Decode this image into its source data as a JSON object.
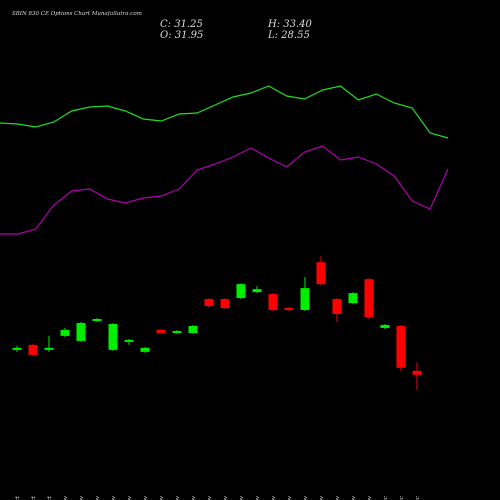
{
  "chart_data": {
    "type": "candlestick",
    "title": "SBIN 830 CE Options Chart MunafaSutra.com",
    "ohlc_labels": [
      "C: 31.25",
      "H: 33.40",
      "O: 31.95",
      "L: 28.55"
    ],
    "categories": [
      "29 Oct",
      "30 Oct",
      "31 Oct",
      "01 Nov",
      "04 Nov",
      "05 Nov",
      "06 Nov",
      "07 Nov",
      "08 Nov",
      "11 Nov",
      "12 Nov",
      "13 Nov",
      "14 Nov",
      "18 Nov",
      "19 Nov",
      "20 Nov",
      "21 Nov",
      "22 Nov",
      "25 Nov",
      "26 Nov",
      "27 Nov",
      "28 Nov",
      "29 Nov",
      "02 Dec",
      "03 Dec",
      "04 Dec"
    ],
    "open": [
      35.63,
      36.5,
      35.63,
      38.08,
      37.2,
      40.7,
      35.63,
      37.03,
      35.28,
      39.13,
      38.6,
      38.6,
      44.55,
      44.55,
      44.73,
      45.78,
      45.43,
      42.98,
      42.63,
      51.03,
      44.55,
      43.85,
      48.05,
      39.48,
      39.83,
      31.95
    ],
    "high": [
      36.33,
      36.68,
      38.08,
      39.48,
      40.53,
      41.23,
      40.35,
      37.55,
      36.15,
      39.3,
      39.13,
      40.0,
      44.73,
      44.73,
      47.35,
      46.83,
      45.6,
      43.15,
      48.4,
      52.08,
      44.73,
      45.78,
      48.23,
      40.18,
      40.0,
      33.4
    ],
    "low": [
      35.28,
      34.58,
      35.28,
      37.9,
      37.03,
      40.53,
      35.45,
      36.5,
      35.1,
      38.43,
      38.43,
      38.43,
      42.98,
      42.8,
      44.55,
      45.6,
      42.45,
      42.45,
      42.45,
      47.0,
      40.53,
      43.68,
      41.05,
      39.3,
      31.95,
      28.55
    ],
    "close": [
      35.98,
      34.75,
      35.98,
      39.13,
      40.35,
      41.05,
      40.18,
      37.38,
      35.98,
      38.6,
      38.95,
      39.83,
      43.33,
      42.98,
      47.18,
      46.3,
      42.63,
      42.63,
      46.48,
      47.18,
      41.93,
      45.6,
      41.4,
      40.0,
      32.48,
      31.25
    ],
    "up_color": "#00ee00",
    "down_color": "#ff0000",
    "ylim": [
      27,
      53
    ],
    "lines": [
      {
        "color": "#22dd22",
        "axis": "y2",
        "values": [
          63.5,
          63,
          61.5,
          64,
          69.5,
          71.5,
          72,
          69.5,
          65.5,
          64.5,
          68,
          68.5,
          72.5,
          76.5,
          78.5,
          82,
          77,
          75.5,
          80,
          82,
          75,
          78,
          73.5,
          71,
          58.5,
          56
        ]
      },
      {
        "color": "#b000b0",
        "axis": "y2",
        "values": [
          8,
          8,
          10.5,
          22.5,
          29.5,
          30.5,
          25.5,
          23.5,
          26,
          27,
          30.5,
          40,
          43,
          46.5,
          51,
          46,
          41.5,
          49,
          52,
          45,
          46.5,
          43,
          37,
          24.5,
          20.5,
          40.5
        ]
      }
    ],
    "y2lim": [
      0,
      100
    ]
  }
}
